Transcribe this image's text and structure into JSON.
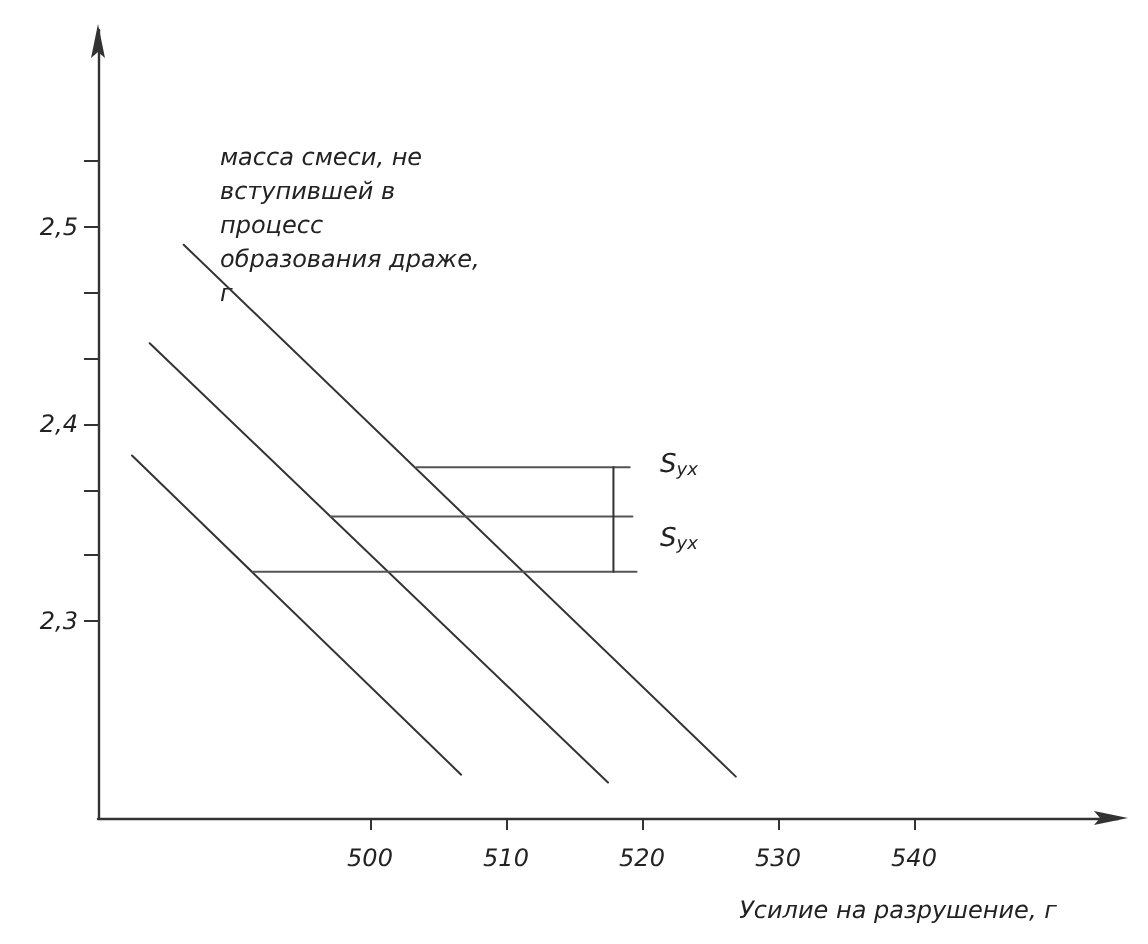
{
  "chart_data": {
    "type": "line",
    "ylabel": "масса смеси, не вступившей в процесс образования драже, г",
    "xlabel": "Усилие на разрушение, г",
    "xlim": [
      480,
      555
    ],
    "xticks": [
      500,
      510,
      520,
      530,
      540
    ],
    "ylim": [
      2.2,
      2.6
    ],
    "yticks": [
      {
        "value": 2.3,
        "label": "2,3"
      },
      {
        "value": 2.3333,
        "label": null
      },
      {
        "value": 2.3667,
        "label": null
      },
      {
        "value": 2.4,
        "label": "2,4"
      },
      {
        "value": 2.4333,
        "label": null
      },
      {
        "value": 2.4667,
        "label": null
      },
      {
        "value": 2.5,
        "label": "2,5"
      },
      {
        "value": 2.5333,
        "label": null
      }
    ],
    "marker": "none",
    "line_style": "solid",
    "grid": false,
    "series": [
      {
        "color": "#333333",
        "x": [
          486.3,
          526.9
        ],
        "values": [
          2.491,
          2.221
        ]
      },
      {
        "color": "#333333",
        "x": [
          483.8,
          517.5
        ],
        "values": [
          2.441,
          2.218
        ]
      },
      {
        "color": "#333333",
        "x": [
          482.5,
          506.7
        ],
        "values": [
          2.384,
          2.222
        ]
      },
      {
        "color": "#555555",
        "x": [
          503.4,
          519.1
        ],
        "values": [
          2.378,
          2.378
        ]
      },
      {
        "color": "#555555",
        "x": [
          497.1,
          519.3
        ],
        "values": [
          2.353,
          2.353
        ]
      },
      {
        "color": "#555555",
        "x": [
          491.4,
          519.6
        ],
        "values": [
          2.325,
          2.325
        ]
      },
      {
        "color": "#333333",
        "x": [
          517.9,
          517.9
        ],
        "values": [
          2.378,
          2.325
        ]
      }
    ],
    "annotations": [
      "S$_{yx}$",
      "S$_{yx}$"
    ]
  }
}
